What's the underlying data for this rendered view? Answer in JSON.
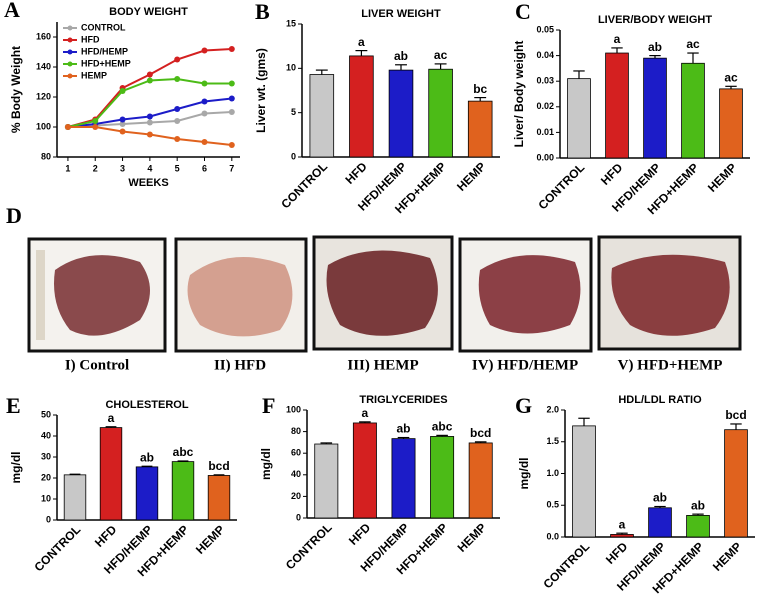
{
  "chart_data": [
    {
      "type": "line",
      "panel": "A",
      "title": "BODY WEIGHT",
      "xlabel": "WEEKS",
      "ylabel": "% Body Weight",
      "x": [
        1,
        2,
        3,
        4,
        5,
        6,
        7
      ],
      "xlim": [
        0.6,
        7.3
      ],
      "xticks": [
        1,
        2,
        3,
        4,
        5,
        6,
        7
      ],
      "ylim": [
        80,
        170
      ],
      "yticks": [
        80,
        100,
        120,
        140,
        160
      ],
      "legend": "upper-left",
      "series": [
        {
          "name": "CONTROL",
          "color": "#a8a8a8",
          "values": [
            100,
            101,
            102,
            103,
            104,
            109,
            110
          ]
        },
        {
          "name": "HFD",
          "color": "#d42020",
          "values": [
            100,
            105,
            126,
            135,
            145,
            151,
            152
          ]
        },
        {
          "name": "HFD/HEMP",
          "color": "#1c1cc8",
          "values": [
            100,
            102,
            105,
            107,
            112,
            117,
            119
          ]
        },
        {
          "name": "HFD+HEMP",
          "color": "#4cbb17",
          "values": [
            100,
            104,
            124,
            131,
            132,
            129,
            129
          ]
        },
        {
          "name": "HEMP",
          "color": "#e0621e",
          "values": [
            100,
            100,
            97,
            95,
            92,
            90,
            88
          ]
        }
      ]
    },
    {
      "type": "bar",
      "panel": "B",
      "title": "LIVER WEIGHT",
      "ylabel": "Liver wt. (gms)",
      "categories": [
        "CONTROL",
        "HFD",
        "HFD/HEMP",
        "HFD+HEMP",
        "HEMP"
      ],
      "values": [
        9.3,
        11.4,
        9.8,
        9.9,
        6.3
      ],
      "error": [
        0.5,
        0.6,
        0.6,
        0.6,
        0.4
      ],
      "annotations": [
        null,
        "a",
        "ab",
        "ac",
        "bc"
      ],
      "colors": [
        "#c8c8c8",
        "#d42020",
        "#1c1cc8",
        "#4cbb17",
        "#e0621e"
      ],
      "ylim": [
        0,
        15
      ],
      "yticks": [
        0,
        5,
        10,
        15
      ]
    },
    {
      "type": "bar",
      "panel": "C",
      "title": "LIVER/BODY WEIGHT",
      "ylabel": "Liver/ Body weight",
      "categories": [
        "CONTROL",
        "HFD",
        "HFD/HEMP",
        "HFD+HEMP",
        "HEMP"
      ],
      "values": [
        0.031,
        0.041,
        0.039,
        0.037,
        0.027
      ],
      "error": [
        0.003,
        0.002,
        0.001,
        0.004,
        0.001
      ],
      "annotations": [
        null,
        "a",
        "ab",
        "ac",
        "ac"
      ],
      "colors": [
        "#c8c8c8",
        "#d42020",
        "#1c1cc8",
        "#4cbb17",
        "#e0621e"
      ],
      "ylim": [
        0,
        0.05
      ],
      "yticks": [
        {
          "value": 0,
          "label": "0.00"
        },
        {
          "value": 0.01,
          "label": "0.01"
        },
        {
          "value": 0.02,
          "label": "0.02"
        },
        {
          "value": 0.03,
          "label": "0.03"
        },
        {
          "value": 0.04,
          "label": "0.04"
        },
        {
          "value": 0.05,
          "label": "0.05"
        }
      ]
    },
    {
      "type": "bar",
      "panel": "E",
      "title": "CHOLESTEROL",
      "ylabel": "mg/dl",
      "categories": [
        "CONTROL",
        "HFD",
        "HFD/HEMP",
        "HFD+HEMP",
        "HEMP"
      ],
      "values": [
        21.5,
        44,
        25.3,
        27.8,
        21.2
      ],
      "error": [
        0.3,
        0.4,
        0.3,
        0.3,
        0.3
      ],
      "annotations": [
        null,
        "a",
        "ab",
        "abc",
        "bcd"
      ],
      "colors": [
        "#c8c8c8",
        "#d42020",
        "#1c1cc8",
        "#4cbb17",
        "#e0621e"
      ],
      "ylim": [
        0,
        50
      ],
      "yticks": [
        0,
        10,
        20,
        30,
        40,
        50
      ]
    },
    {
      "type": "bar",
      "panel": "F",
      "title": "TRIGLYCERIDES",
      "ylabel": "mg/dl",
      "categories": [
        "CONTROL",
        "HFD",
        "HFD/HEMP",
        "HFD+HEMP",
        "HEMP"
      ],
      "values": [
        68.5,
        88,
        73.5,
        75.5,
        69.5
      ],
      "error": [
        1,
        1,
        1,
        1,
        1
      ],
      "annotations": [
        null,
        "a",
        "ab",
        "abc",
        "bcd"
      ],
      "colors": [
        "#c8c8c8",
        "#d42020",
        "#1c1cc8",
        "#4cbb17",
        "#e0621e"
      ],
      "ylim": [
        0,
        100
      ],
      "yticks": [
        0,
        20,
        40,
        60,
        80,
        100
      ]
    },
    {
      "type": "bar",
      "panel": "G",
      "title": "HDL/LDL RATIO",
      "ylabel": "mg/dl",
      "categories": [
        "CONTROL",
        "HFD",
        "HFD/HEMP",
        "HFD+HEMP",
        "HEMP"
      ],
      "values": [
        1.75,
        0.04,
        0.46,
        0.34,
        1.69
      ],
      "error": [
        0.12,
        0.02,
        0.02,
        0.02,
        0.09
      ],
      "annotations": [
        null,
        "a",
        "ab",
        "ab",
        "bcd"
      ],
      "colors": [
        "#c8c8c8",
        "#d42020",
        "#1c1cc8",
        "#4cbb17",
        "#e0621e"
      ],
      "ylim": [
        0,
        2.0
      ],
      "yticks": [
        {
          "value": 0,
          "label": "0.0"
        },
        {
          "value": 0.5,
          "label": "0.5"
        },
        {
          "value": 1,
          "label": "1.0"
        },
        {
          "value": 1.5,
          "label": "1.5"
        },
        {
          "value": 2,
          "label": "2.0"
        }
      ]
    }
  ],
  "figure_d": {
    "panel": "D",
    "captions": [
      "I) Control",
      "II) HFD",
      "III) HEMP",
      "IV) HFD/HEMP",
      "V) HFD+HEMP"
    ]
  }
}
